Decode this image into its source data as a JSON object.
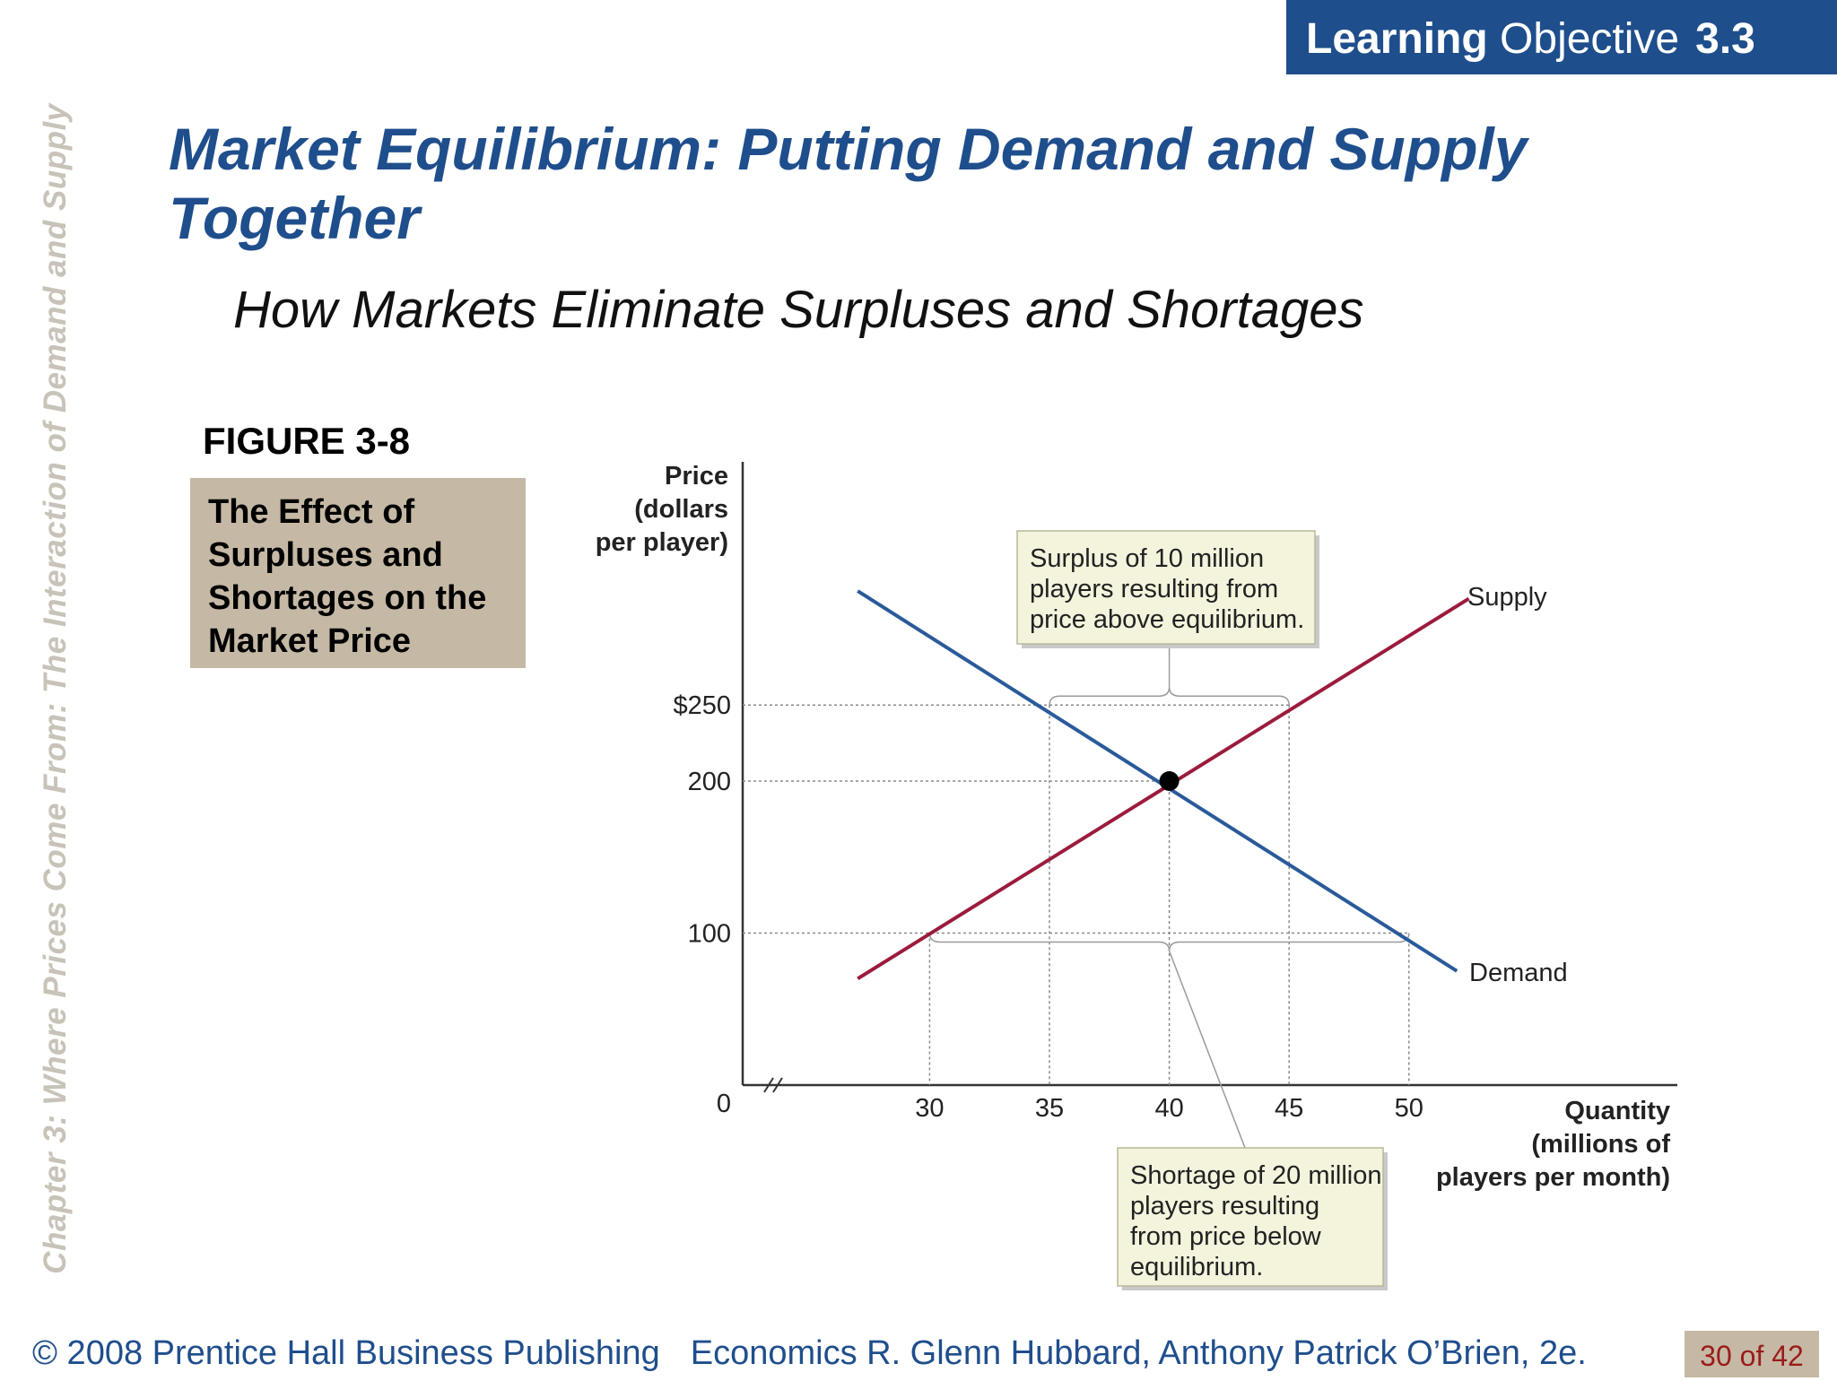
{
  "side_caption": "Chapter 3: Where Prices Come From: The Interaction of Demand and Supply",
  "learning_objective": {
    "prefix": "Learning",
    "word": "Objective",
    "number": "3.3"
  },
  "title_lines": [
    "Market Equilibrium: Putting Demand and Supply",
    "Together"
  ],
  "subtitle": "How Markets Eliminate Surpluses and Shortages",
  "figure_label": "FIGURE 3-8",
  "figure_caption_lines": [
    "The Effect of",
    "Surpluses and",
    "Shortages on the",
    "Market Price"
  ],
  "footer": {
    "publisher": "© 2008 Prentice Hall Business Publishing",
    "book": "Economics",
    "authors": "R. Glenn Hubbard, Anthony Patrick O’Brien, 2e.",
    "page": "30 of 42"
  },
  "colors": {
    "title_blue": "#1f4e8c",
    "demand_line": "#2a5a9a",
    "supply_line": "#9b1b3c",
    "caption_bg": "#c5b9a5",
    "callout_bg": "#f4f3dc",
    "side_caption": "#c8c3b9"
  },
  "chart_data": {
    "type": "line",
    "ylabel_lines": [
      "Price",
      "(dollars",
      "per player)"
    ],
    "xlabel_lines": [
      "Quantity",
      "(millions of",
      "players per month)"
    ],
    "origin_label": "0",
    "y_ticks": [
      {
        "value": 100,
        "label": "100"
      },
      {
        "value": 200,
        "label": "200"
      },
      {
        "value": 250,
        "label": "$250"
      }
    ],
    "x_ticks": [
      {
        "value": 30,
        "label": "30"
      },
      {
        "value": 35,
        "label": "35"
      },
      {
        "value": 40,
        "label": "40"
      },
      {
        "value": 45,
        "label": "45"
      },
      {
        "value": 50,
        "label": "50"
      }
    ],
    "xlim": [
      22.2,
      61.2
    ],
    "ylim": [
      0,
      410
    ],
    "axis_break": true,
    "series": [
      {
        "name": "Supply",
        "x": [
          27,
          52.5
        ],
        "y": [
          70,
          320
        ]
      },
      {
        "name": "Demand",
        "x": [
          27,
          52
        ],
        "y": [
          325,
          75
        ]
      }
    ],
    "equilibrium": {
      "x": 40,
      "y": 200
    },
    "surplus_bracket": {
      "y": 250,
      "x_from": 35,
      "x_to": 45
    },
    "shortage_bracket": {
      "y": 100,
      "x_from": 30,
      "x_to": 50
    },
    "annotations": [
      {
        "lines": [
          "Surplus of 10 million",
          "players resulting from",
          "price above equilibrium."
        ]
      },
      {
        "lines": [
          "Shortage of 20 million",
          "players resulting",
          "from price below",
          "equilibrium."
        ]
      }
    ]
  }
}
